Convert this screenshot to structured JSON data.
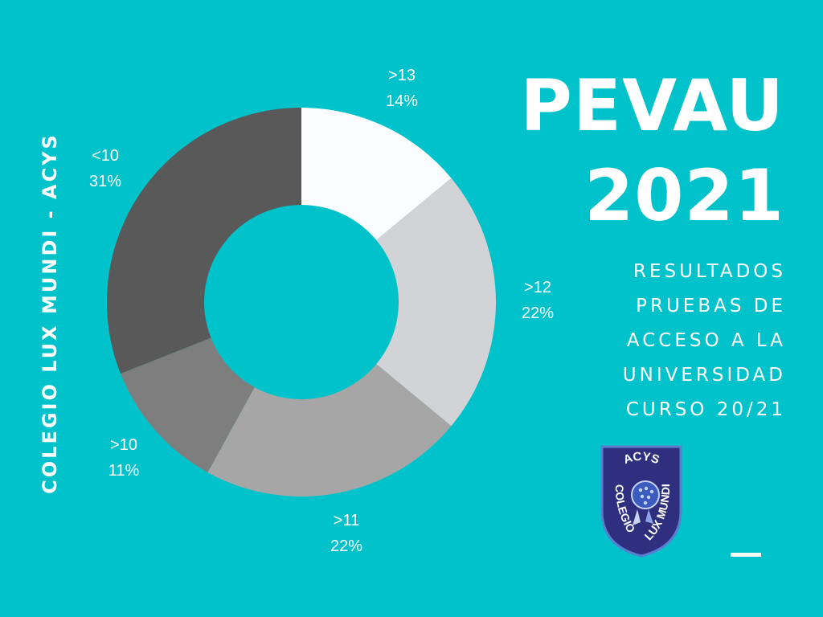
{
  "side_text": "COLEGIO LUX MUNDI - ACYS",
  "title": {
    "line1": "PEVAU",
    "line2": "2021"
  },
  "subtitle": [
    "RESULTADOS",
    "PRUEBAS DE",
    "ACCESO A LA",
    "UNIVERSIDAD",
    "CURSO 20/21"
  ],
  "logo": {
    "arc_text": "ACYS",
    "words": [
      "COLEGIO",
      "LUX MUNDI"
    ],
    "fill": "#2e2f7f",
    "border": "#5a7fd0"
  },
  "colors": {
    "background": "#00c2cb"
  },
  "chart_data": {
    "type": "pie",
    "donut": true,
    "slices": [
      {
        "name": ">13",
        "label": "14%",
        "value": 14,
        "color": "#fafcff"
      },
      {
        "name": ">12",
        "label": "22%",
        "value": 22,
        "color": "#d2d3d6"
      },
      {
        "name": ">11",
        "label": "22%",
        "value": 22,
        "color": "#a6a6a6"
      },
      {
        "name": ">10",
        "label": "11%",
        "value": 11,
        "color": "#7e7e7e"
      },
      {
        "name": "<10",
        "label": "31%",
        "value": 31,
        "color": "#595959"
      }
    ]
  }
}
